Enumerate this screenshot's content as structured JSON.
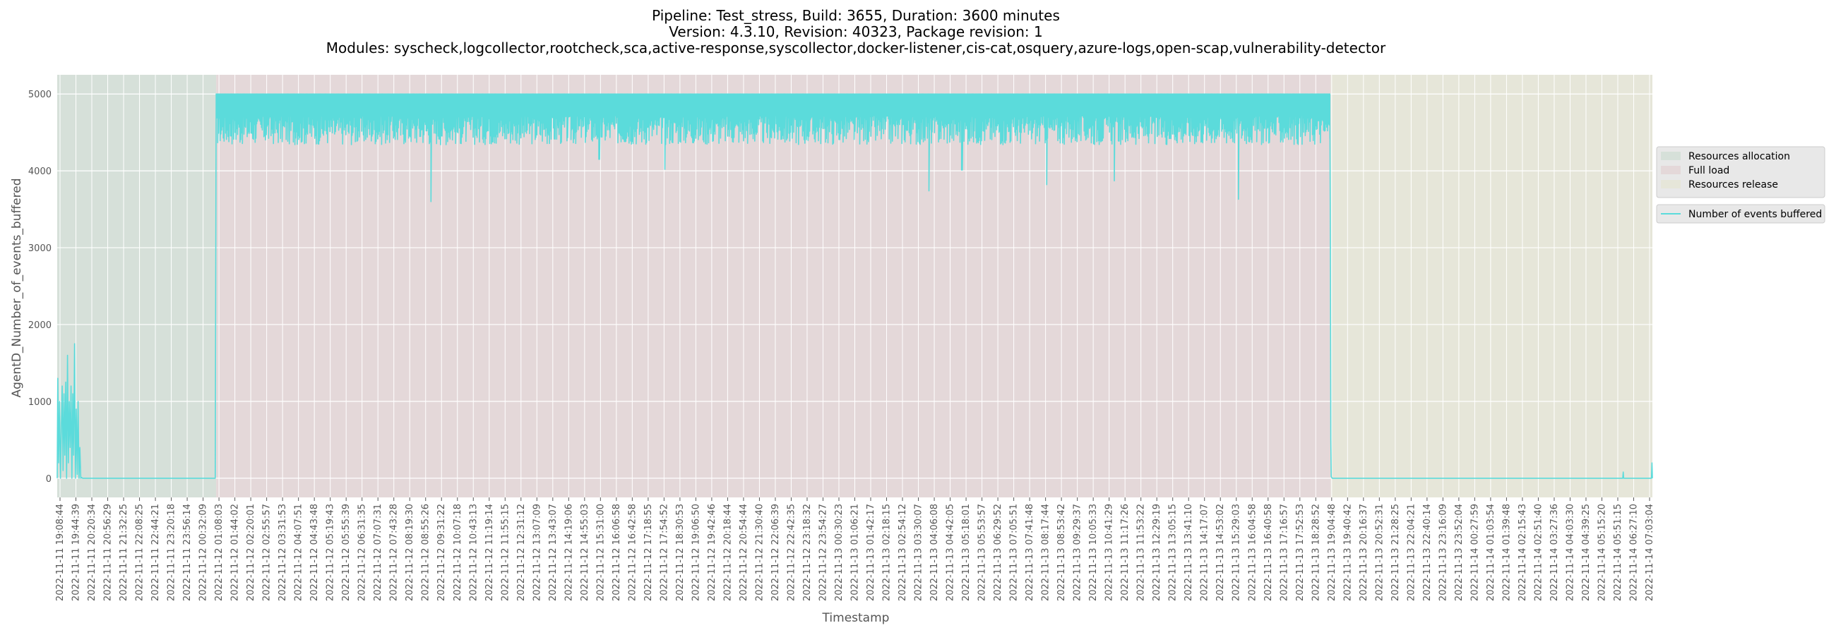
{
  "chart_data": {
    "type": "line",
    "title_lines": [
      "Pipeline: Test_stress, Build: 3655, Duration: 3600 minutes",
      "Version: 4.3.10, Revision: 40323, Package revision: 1",
      "Modules: syscheck,logcollector,rootcheck,sca,active-response,syscollector,docker-listener,cis-cat,osquery,azure-logs,open-scap,vulnerability-detector"
    ],
    "xlabel": "Timestamp",
    "ylabel": "AgentD_Number_of_events_buffered",
    "ylim": [
      -250,
      5250
    ],
    "yticks": [
      0,
      1000,
      2000,
      3000,
      4000,
      5000
    ],
    "grid": true,
    "legend_position": "center-right",
    "x_start": "2022-11-11 19:08:44",
    "x_end": "2022-11-14 07:15:00",
    "x_tick_labels": [
      "2022-11-11 19:08:44",
      "2022-11-11 19:44:39",
      "2022-11-11 20:20:34",
      "2022-11-11 20:56:29",
      "2022-11-11 21:32:25",
      "2022-11-11 22:08:25",
      "2022-11-11 22:44:21",
      "2022-11-11 23:20:18",
      "2022-11-11 23:56:14",
      "2022-11-12 00:32:09",
      "2022-11-12 01:08:03",
      "2022-11-12 01:44:02",
      "2022-11-12 02:20:01",
      "2022-11-12 02:55:57",
      "2022-11-12 03:31:53",
      "2022-11-12 04:07:51",
      "2022-11-12 04:43:48",
      "2022-11-12 05:19:43",
      "2022-11-12 05:55:39",
      "2022-11-12 06:31:35",
      "2022-11-12 07:07:31",
      "2022-11-12 07:43:28",
      "2022-11-12 08:19:30",
      "2022-11-12 08:55:26",
      "2022-11-12 09:31:22",
      "2022-11-12 10:07:18",
      "2022-11-12 10:43:13",
      "2022-11-12 11:19:14",
      "2022-11-12 11:55:15",
      "2022-11-12 12:31:12",
      "2022-11-12 13:07:09",
      "2022-11-12 13:43:07",
      "2022-11-12 14:19:06",
      "2022-11-12 14:55:03",
      "2022-11-12 15:31:00",
      "2022-11-12 16:06:58",
      "2022-11-12 16:42:58",
      "2022-11-12 17:18:55",
      "2022-11-12 17:54:52",
      "2022-11-12 18:30:53",
      "2022-11-12 19:06:50",
      "2022-11-12 19:42:46",
      "2022-11-12 20:18:44",
      "2022-11-12 20:54:44",
      "2022-11-12 21:30:40",
      "2022-11-12 22:06:39",
      "2022-11-12 22:42:35",
      "2022-11-12 23:18:32",
      "2022-11-12 23:54:27",
      "2022-11-13 00:30:23",
      "2022-11-13 01:06:21",
      "2022-11-13 01:42:17",
      "2022-11-13 02:18:15",
      "2022-11-13 02:54:12",
      "2022-11-13 03:30:07",
      "2022-11-13 04:06:08",
      "2022-11-13 04:42:05",
      "2022-11-13 05:18:01",
      "2022-11-13 05:53:57",
      "2022-11-13 06:29:52",
      "2022-11-13 07:05:51",
      "2022-11-13 07:41:48",
      "2022-11-13 08:17:44",
      "2022-11-13 08:53:42",
      "2022-11-13 09:29:37",
      "2022-11-13 10:05:33",
      "2022-11-13 10:41:29",
      "2022-11-13 11:17:26",
      "2022-11-13 11:53:22",
      "2022-11-13 12:29:19",
      "2022-11-13 13:05:15",
      "2022-11-13 13:41:10",
      "2022-11-13 14:17:07",
      "2022-11-13 14:53:02",
      "2022-11-13 15:29:03",
      "2022-11-13 16:04:58",
      "2022-11-13 16:40:58",
      "2022-11-13 17:16:57",
      "2022-11-13 17:52:53",
      "2022-11-13 18:28:52",
      "2022-11-13 19:04:48",
      "2022-11-13 19:40:42",
      "2022-11-13 20:16:37",
      "2022-11-13 20:52:31",
      "2022-11-13 21:28:25",
      "2022-11-13 22:04:21",
      "2022-11-13 22:40:14",
      "2022-11-13 23:16:09",
      "2022-11-13 23:52:04",
      "2022-11-14 00:27:59",
      "2022-11-14 01:03:54",
      "2022-11-14 01:39:48",
      "2022-11-14 02:15:43",
      "2022-11-14 02:51:40",
      "2022-11-14 03:27:36",
      "2022-11-14 04:03:30",
      "2022-11-14 04:39:25",
      "2022-11-14 05:15:20",
      "2022-11-14 05:51:15",
      "2022-11-14 06:27:10",
      "2022-11-14 07:03:04"
    ],
    "phases": [
      {
        "name": "Resources allocation",
        "start": "2022-11-11 19:08:44",
        "end": "2022-11-12 01:08:03",
        "color": "#d6e0d9"
      },
      {
        "name": "Full load",
        "start": "2022-11-12 01:08:03",
        "end": "2022-11-13 19:08:00",
        "color": "#e4d8d9"
      },
      {
        "name": "Resources release",
        "start": "2022-11-13 19:08:00",
        "end": "2022-11-14 07:15:00",
        "color": "#e6e6d9"
      }
    ],
    "series": [
      {
        "name": "Number of events buffered",
        "color": "#5bdbdb",
        "start_phase": {
          "x": [
            "2022-11-11 19:08:44",
            "2022-11-11 19:10:00",
            "2022-11-11 19:12:00",
            "2022-11-11 19:14:00",
            "2022-11-11 19:16:00",
            "2022-11-11 19:18:00",
            "2022-11-11 19:20:00",
            "2022-11-11 19:22:00",
            "2022-11-11 19:24:00",
            "2022-11-11 19:26:00",
            "2022-11-11 19:28:00",
            "2022-11-11 19:30:00",
            "2022-11-11 19:32:00",
            "2022-11-11 19:34:00",
            "2022-11-11 19:36:00",
            "2022-11-11 19:38:00",
            "2022-11-11 19:40:00",
            "2022-11-11 19:42:00",
            "2022-11-11 19:44:00",
            "2022-11-11 19:46:00",
            "2022-11-11 19:48:00",
            "2022-11-11 19:50:00",
            "2022-11-11 19:52:00",
            "2022-11-11 19:54:00",
            "2022-11-11 19:56:00",
            "2022-11-11 19:58:00",
            "2022-11-11 20:00:00",
            "2022-11-11 20:02:00",
            "2022-11-11 20:04:00",
            "2022-11-11 20:06:00",
            "2022-11-11 20:08:00",
            "2022-11-11 20:10:00",
            "2022-11-11 20:15:00",
            "2022-11-12 01:06:00",
            "2022-11-12 01:08:03"
          ],
          "y": [
            0,
            1300,
            200,
            1000,
            0,
            600,
            1200,
            100,
            1100,
            300,
            1250,
            0,
            1600,
            200,
            1000,
            400,
            1200,
            0,
            1100,
            300,
            1750,
            0,
            900,
            50,
            1000,
            0,
            400,
            0,
            10,
            0,
            0,
            0,
            0,
            0,
            4900
          ]
        },
        "full_load": {
          "start": "2022-11-12 01:08:03",
          "end": "2022-11-13 19:06:00",
          "ceiling": 5000,
          "typical_floor": 4400
        },
        "full_load_dips": [
          {
            "x": "2022-11-12 09:14:00",
            "y": 3600
          },
          {
            "x": "2022-11-12 15:34:00",
            "y": 4150
          },
          {
            "x": "2022-11-12 18:03:00",
            "y": 4020
          },
          {
            "x": "2022-11-13 04:00:00",
            "y": 3740
          },
          {
            "x": "2022-11-13 05:14:00",
            "y": 4010
          },
          {
            "x": "2022-11-13 08:26:00",
            "y": 3820
          },
          {
            "x": "2022-11-13 10:59:00",
            "y": 3870
          },
          {
            "x": "2022-11-13 15:39:00",
            "y": 3630
          }
        ],
        "end_phase": {
          "x": [
            "2022-11-13 19:06:00",
            "2022-11-13 19:07:00",
            "2022-11-13 19:08:00",
            "2022-11-13 19:09:00",
            "2022-11-13 19:11:00",
            "2022-11-13 19:14:00",
            "2022-11-14 06:08:00",
            "2022-11-14 06:09:00",
            "2022-11-14 06:10:00",
            "2022-11-14 07:13:00",
            "2022-11-14 07:14:00",
            "2022-11-14 07:15:00"
          ],
          "y": [
            4700,
            3100,
            500,
            20,
            0,
            0,
            0,
            80,
            0,
            0,
            200,
            0
          ]
        }
      }
    ]
  }
}
